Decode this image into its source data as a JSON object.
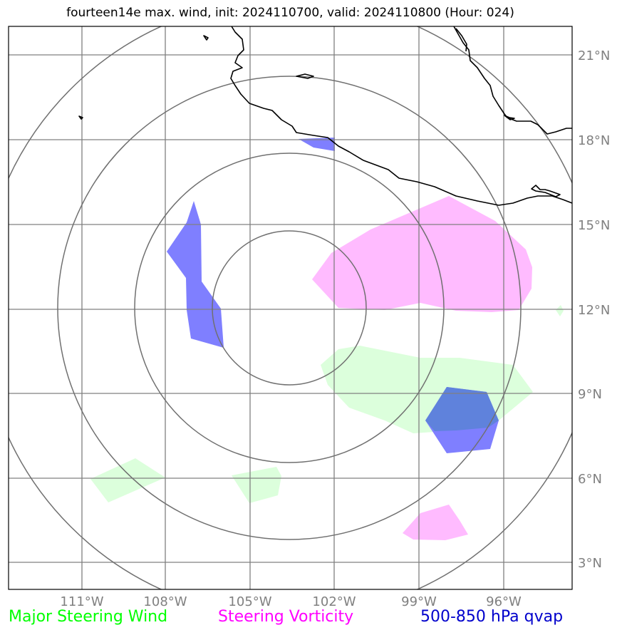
{
  "title": "fourteen14e max. wind, init: 2024110700, valid: 2024110800 (Hour: 024)",
  "legend": {
    "major_steering_wind": "Major Steering Wind",
    "steering_vorticity": "Steering Vorticity",
    "qvap": "500-850 hPa qvap"
  },
  "colors": {
    "wind_fill": "#dcffdc",
    "vorticity_fill": "#ffbbff",
    "qvap_fill": "#7f7fff",
    "qvap_overlap_fill": "#5f82dc",
    "grid": "#808080",
    "coastline": "#000000"
  },
  "axes": {
    "lon_labels": [
      "111°W",
      "108°W",
      "105°W",
      "102°W",
      "99°W",
      "96°W"
    ],
    "lat_labels": [
      "21°N",
      "18°N",
      "15°N",
      "12°N",
      "9°N",
      "6°N",
      "3°N"
    ]
  }
}
